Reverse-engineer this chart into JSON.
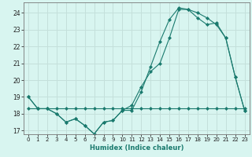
{
  "title": "",
  "xlabel": "Humidex (Indice chaleur)",
  "bg_color": "#d8f5f0",
  "grid_color": "#c4e0db",
  "line_color": "#1a7a6e",
  "xlim": [
    -0.5,
    23.5
  ],
  "ylim": [
    16.8,
    24.6
  ],
  "yticks": [
    17,
    18,
    19,
    20,
    21,
    22,
    23,
    24
  ],
  "xticks": [
    0,
    1,
    2,
    3,
    4,
    5,
    6,
    7,
    8,
    9,
    10,
    11,
    12,
    13,
    14,
    15,
    16,
    17,
    18,
    19,
    20,
    21,
    22,
    23
  ],
  "series1_x": [
    0,
    1,
    2,
    3,
    4,
    5,
    6,
    7,
    8,
    9,
    10,
    11,
    12,
    13,
    14,
    15,
    16,
    17,
    18,
    19,
    20,
    21,
    22,
    23
  ],
  "series1_y": [
    19.0,
    18.3,
    18.3,
    18.0,
    17.5,
    17.7,
    17.3,
    16.8,
    17.5,
    17.6,
    18.2,
    18.2,
    19.3,
    20.8,
    22.3,
    23.6,
    24.3,
    24.2,
    23.7,
    23.3,
    23.4,
    22.5,
    20.2,
    18.2
  ],
  "series2_x": [
    0,
    1,
    2,
    3,
    4,
    5,
    6,
    7,
    8,
    9,
    10,
    11,
    12,
    13,
    14,
    15,
    16,
    17,
    18,
    19,
    20,
    21,
    22,
    23
  ],
  "series2_y": [
    19.0,
    18.3,
    18.3,
    18.0,
    17.5,
    17.7,
    17.3,
    16.8,
    17.5,
    17.6,
    18.2,
    18.5,
    19.6,
    20.5,
    21.0,
    22.5,
    24.2,
    24.2,
    24.0,
    23.7,
    23.3,
    22.5,
    20.2,
    18.2
  ],
  "series3_x": [
    0,
    1,
    2,
    3,
    4,
    5,
    6,
    7,
    8,
    9,
    10,
    11,
    12,
    13,
    14,
    15,
    16,
    17,
    18,
    19,
    20,
    21,
    22,
    23
  ],
  "series3_y": [
    18.3,
    18.3,
    18.3,
    18.3,
    18.3,
    18.3,
    18.3,
    18.3,
    18.3,
    18.3,
    18.3,
    18.3,
    18.3,
    18.3,
    18.3,
    18.3,
    18.3,
    18.3,
    18.3,
    18.3,
    18.3,
    18.3,
    18.3,
    18.3
  ]
}
